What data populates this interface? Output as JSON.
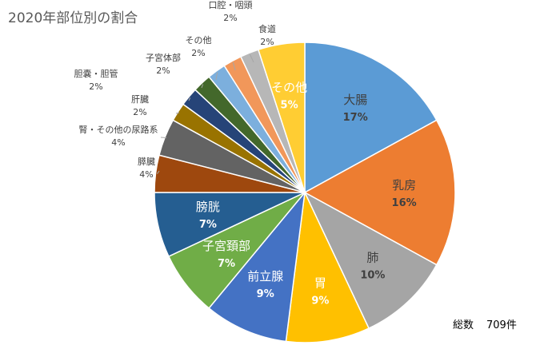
{
  "chart_data": {
    "type": "pie",
    "title": "2020年部位別の割合",
    "total_label": "総数",
    "total_value": "709件",
    "slices": [
      {
        "label": "大腸",
        "percent_label": "17%",
        "value": 17,
        "color": "#5b9bd5",
        "inside": true
      },
      {
        "label": "乳房",
        "percent_label": "16%",
        "value": 16,
        "color": "#ed7d31",
        "inside": true
      },
      {
        "label": "肺",
        "percent_label": "10%",
        "value": 10,
        "color": "#a5a5a5",
        "inside": true
      },
      {
        "label": "胃",
        "percent_label": "9%",
        "value": 9,
        "color": "#ffc000",
        "inside": true
      },
      {
        "label": "前立腺",
        "percent_label": "9%",
        "value": 9,
        "color": "#4472c4",
        "inside": true
      },
      {
        "label": "子宮頚部",
        "percent_label": "7%",
        "value": 7,
        "color": "#70ad47",
        "inside": true
      },
      {
        "label": "膀胱",
        "percent_label": "7%",
        "value": 7,
        "color": "#255e91",
        "inside": true
      },
      {
        "label": "膵臓",
        "percent_label": "4%",
        "value": 4,
        "color": "#9e480e",
        "inside": false
      },
      {
        "label": "腎・その他の尿路系",
        "percent_label": "4%",
        "value": 4,
        "color": "#636363",
        "inside": false
      },
      {
        "label": "肝臓",
        "percent_label": "2%",
        "value": 2,
        "color": "#997300",
        "inside": false
      },
      {
        "label": "胆嚢・胆管",
        "percent_label": "2%",
        "value": 2,
        "color": "#264478",
        "inside": false
      },
      {
        "label": "子宮体部",
        "percent_label": "2%",
        "value": 2,
        "color": "#43682b",
        "inside": false
      },
      {
        "label": "その他",
        "percent_label": "2%",
        "value": 2,
        "color": "#7cafdd",
        "inside": false
      },
      {
        "label": "口腔・咽頭",
        "percent_label": "2%",
        "value": 2,
        "color": "#f1975a",
        "inside": false
      },
      {
        "label": "食道",
        "percent_label": "2%",
        "value": 2,
        "color": "#b7b7b7",
        "inside": false
      },
      {
        "label": "その他",
        "percent_label": "5%",
        "value": 5,
        "color": "#ffcd33",
        "inside": true
      }
    ]
  }
}
